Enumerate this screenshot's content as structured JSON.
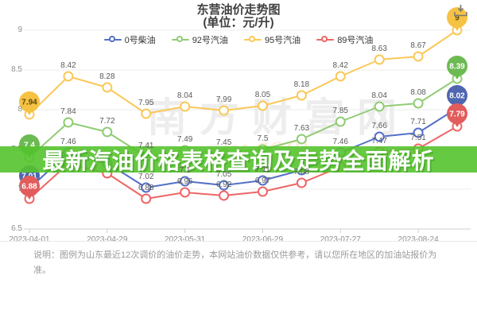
{
  "title": {
    "line1": "东营油价走势图",
    "line2": "(单位：元/升)"
  },
  "legend": [
    {
      "label": "0号柴油",
      "color": "#5470c6"
    },
    {
      "label": "92号汽油",
      "color": "#91cc75"
    },
    {
      "label": "95号汽油",
      "color": "#fac858"
    },
    {
      "label": "89号汽油",
      "color": "#ee6666"
    }
  ],
  "banner": {
    "text": "最新汽油价格表格查询及走势全面解析",
    "bg_color": "#55c32d",
    "text_color": "#ffffff"
  },
  "watermark": {
    "cn": "南方财富网",
    "en": "southmoney.com"
  },
  "toolbox": {
    "icon": "download-icon"
  },
  "note": {
    "text": "说明：图例为山东最近12次调价的油价走势，本网站油价数据仅供参考，请以您所在地区的加油站报价为准。"
  },
  "chart_data": {
    "type": "line",
    "x_labels": [
      "2023-04-01",
      "2023-04-29",
      "2023-05-31",
      "2023-06-29",
      "2023-07-27",
      "2023-08-24"
    ],
    "x_label_point_index": [
      0,
      2,
      4,
      6,
      8,
      10
    ],
    "y_ticks": [
      "6.5",
      "7",
      "7.5",
      "8",
      "8.5",
      "9"
    ],
    "ylim": [
      6.5,
      9.25
    ],
    "grid": true,
    "legend_position": "top",
    "series": [
      {
        "name": "0号柴油",
        "color": "#5470c6",
        "badge_fill": "#4f66b0",
        "badge_text_color": "#ffffff",
        "values": [
          7.01,
          7.46,
          7.33,
          7.02,
          7.1,
          7.05,
          7.11,
          7.24,
          7.46,
          7.66,
          7.71,
          8.02
        ],
        "labels": [
          null,
          "7.46",
          null,
          "7.02",
          "7.1",
          "7.05",
          "7.11",
          null,
          "7.46",
          "7.66",
          "7.71",
          null
        ],
        "start_badge": "7.01",
        "end_badge": "8.02"
      },
      {
        "name": "92号汽油",
        "color": "#91cc75",
        "badge_fill": "#6cba52",
        "badge_text_color": "#ffffff",
        "values": [
          7.4,
          7.84,
          7.72,
          7.41,
          7.49,
          7.45,
          7.5,
          7.63,
          7.85,
          8.04,
          8.08,
          8.39
        ],
        "labels": [
          null,
          "7.84",
          "7.72",
          "7.41",
          "7.49",
          "7.45",
          "7.5",
          "7.63",
          "7.85",
          "8.04",
          "8.08",
          null
        ],
        "start_badge": "7.4",
        "end_badge": "8.39"
      },
      {
        "name": "95号汽油",
        "color": "#fac858",
        "badge_fill": "#f6c243",
        "badge_text_color": "#5d4a11",
        "values": [
          7.94,
          8.42,
          8.28,
          7.95,
          8.04,
          7.99,
          8.05,
          8.18,
          8.42,
          8.63,
          8.67,
          9.0
        ],
        "labels": [
          null,
          "8.42",
          "8.28",
          "7.95",
          "8.04",
          "7.99",
          "8.05",
          "8.18",
          "8.42",
          "8.63",
          "8.67",
          null
        ],
        "start_badge": "7.94",
        "end_badge": "9"
      },
      {
        "name": "89号汽油",
        "color": "#ee6666",
        "badge_fill": "#e25c5c",
        "badge_text_color": "#ffffff",
        "values": [
          6.88,
          7.32,
          7.2,
          6.88,
          6.96,
          6.92,
          6.97,
          7.08,
          7.28,
          7.47,
          7.51,
          7.79
        ],
        "labels": [
          null,
          null,
          null,
          "6.88",
          "6.96",
          "6.92",
          "6.97",
          "7.08",
          null,
          "7.47",
          "7.51",
          null
        ],
        "start_badge": "6.88",
        "end_badge": "7.79"
      }
    ]
  }
}
